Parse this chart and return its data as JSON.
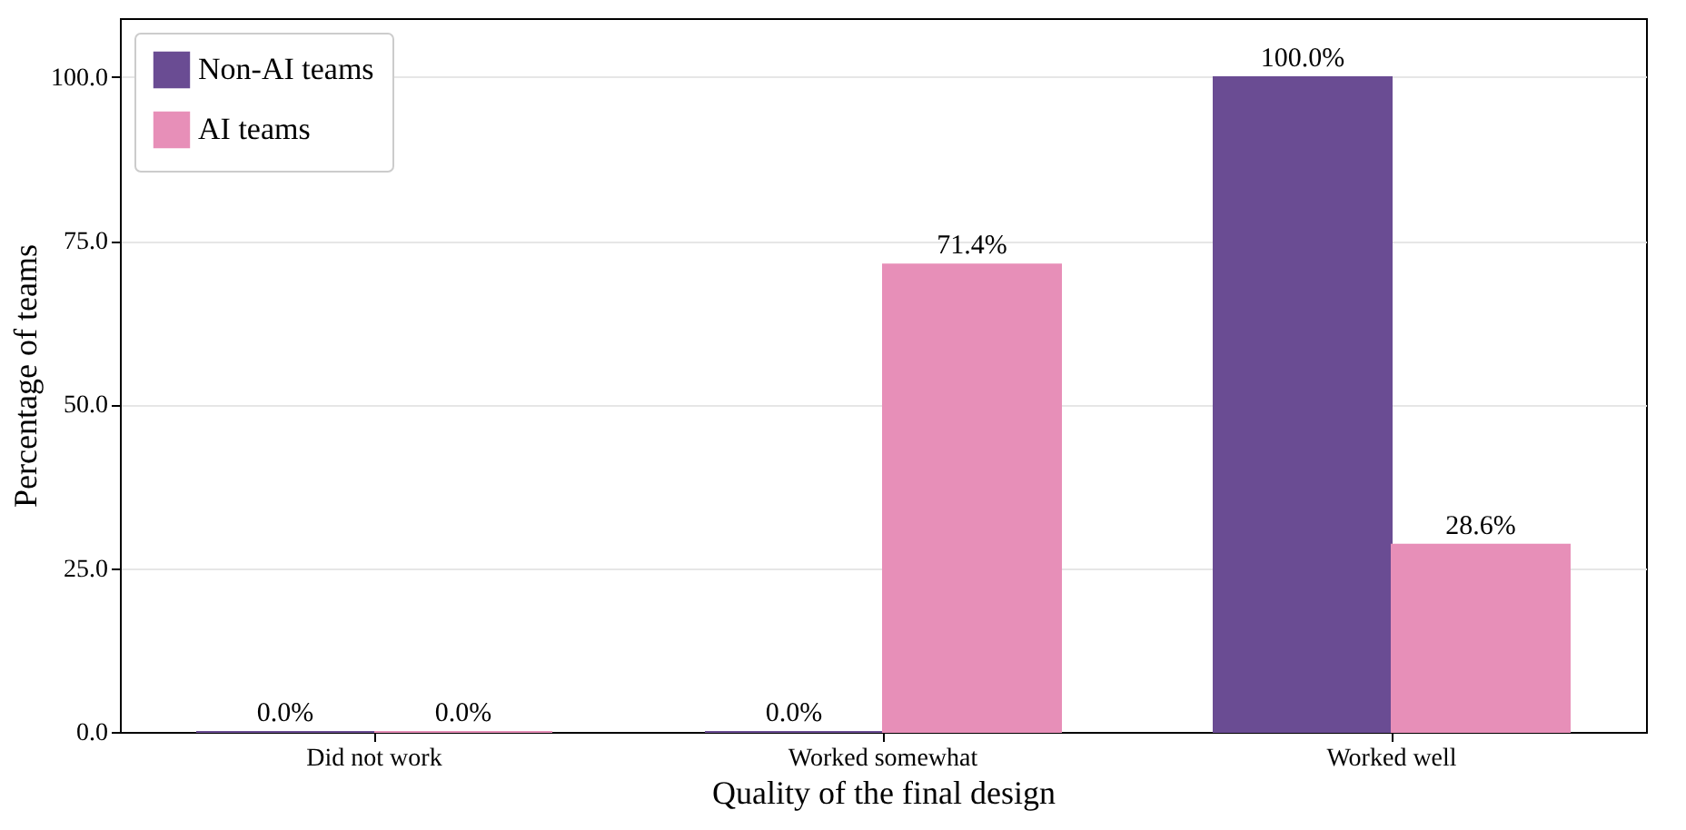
{
  "chart_data": {
    "type": "bar",
    "xlabel": "Quality of the final design",
    "ylabel": "Percentage of teams",
    "categories": [
      "Did not work",
      "Worked somewhat",
      "Worked well"
    ],
    "series": [
      {
        "name": "Non-AI teams",
        "color": "#6a4c93",
        "values": [
          0.0,
          0.0,
          100.0
        ],
        "value_labels": [
          "0.0%",
          "0.0%",
          "100.0%"
        ]
      },
      {
        "name": "AI teams",
        "color": "#e78fb8",
        "values": [
          0.0,
          71.4,
          28.6
        ],
        "value_labels": [
          "0.0%",
          "71.4%",
          "28.6%"
        ]
      }
    ],
    "ylim": [
      0,
      109
    ],
    "yticks": [
      {
        "value": 0,
        "label": "0.0"
      },
      {
        "value": 25,
        "label": "25.0"
      },
      {
        "value": 50,
        "label": "50.0"
      },
      {
        "value": 75,
        "label": "75.0"
      },
      {
        "value": 100,
        "label": "100.0"
      }
    ],
    "grid": "y",
    "legend": "top left"
  }
}
